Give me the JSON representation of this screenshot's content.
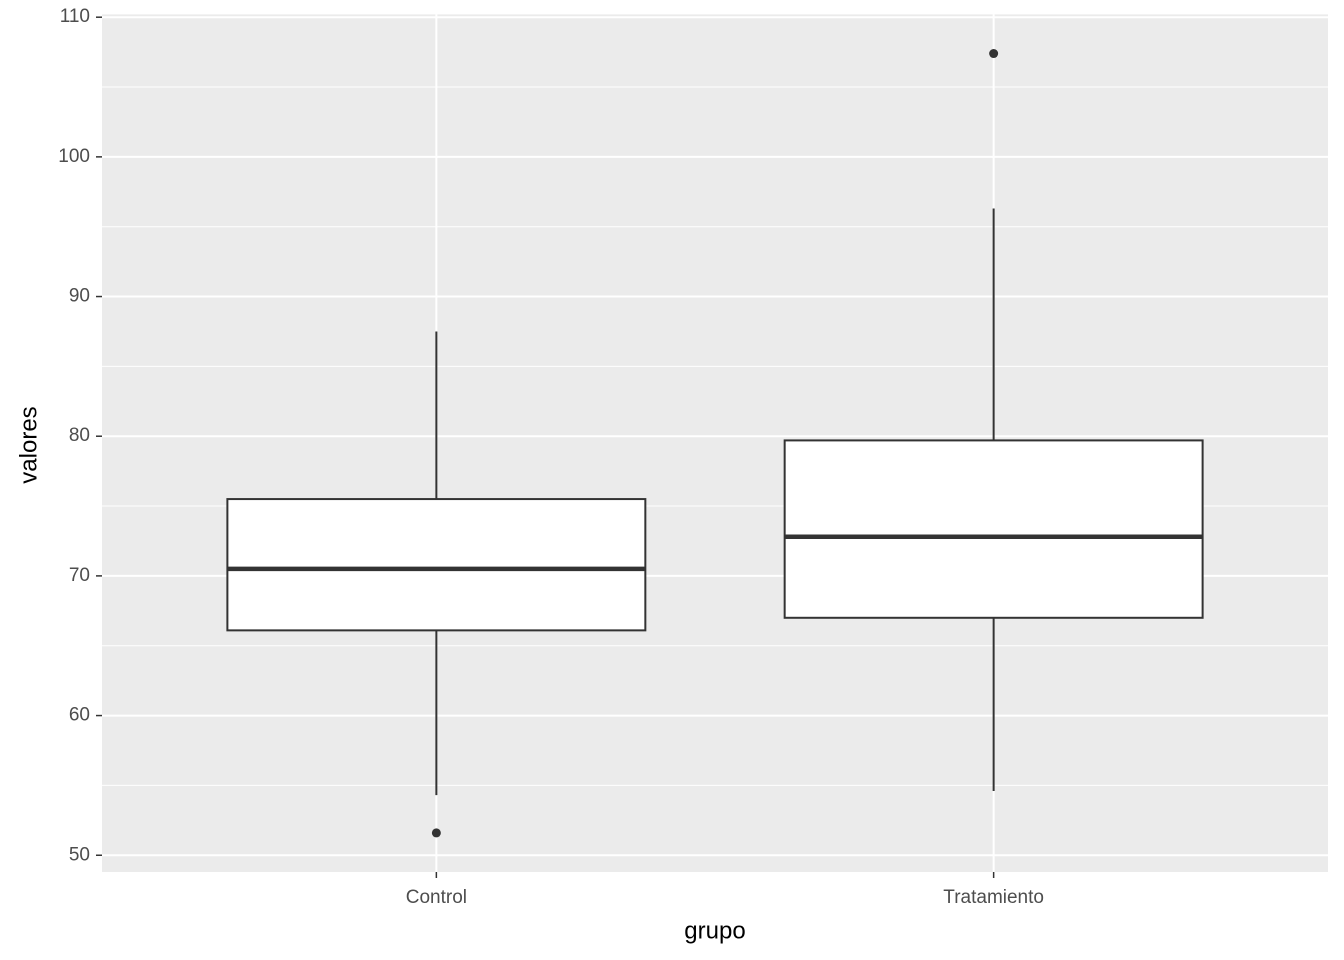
{
  "chart_data": {
    "type": "boxplot",
    "x_label": "grupo",
    "y_label": "valores",
    "categories": [
      "Control",
      "Tratamiento"
    ],
    "boxes": [
      {
        "whisker_low": 54.3,
        "q1": 66.1,
        "median": 70.5,
        "q3": 75.5,
        "whisker_high": 87.5,
        "outliers": [
          51.6
        ]
      },
      {
        "whisker_low": 54.6,
        "q1": 67.0,
        "median": 72.8,
        "q3": 79.7,
        "whisker_high": 96.3,
        "outliers": [
          107.4
        ]
      }
    ],
    "box_fill": "#ffffff",
    "box_stroke": "#333333",
    "ylim": [
      48.8,
      110.2
    ],
    "yticks": [
      50,
      60,
      70,
      80,
      90,
      100,
      110
    ],
    "minor_yticks": [
      55,
      65,
      75,
      85,
      95,
      105
    ],
    "grid": true,
    "panel_color": "#ebebeb"
  }
}
